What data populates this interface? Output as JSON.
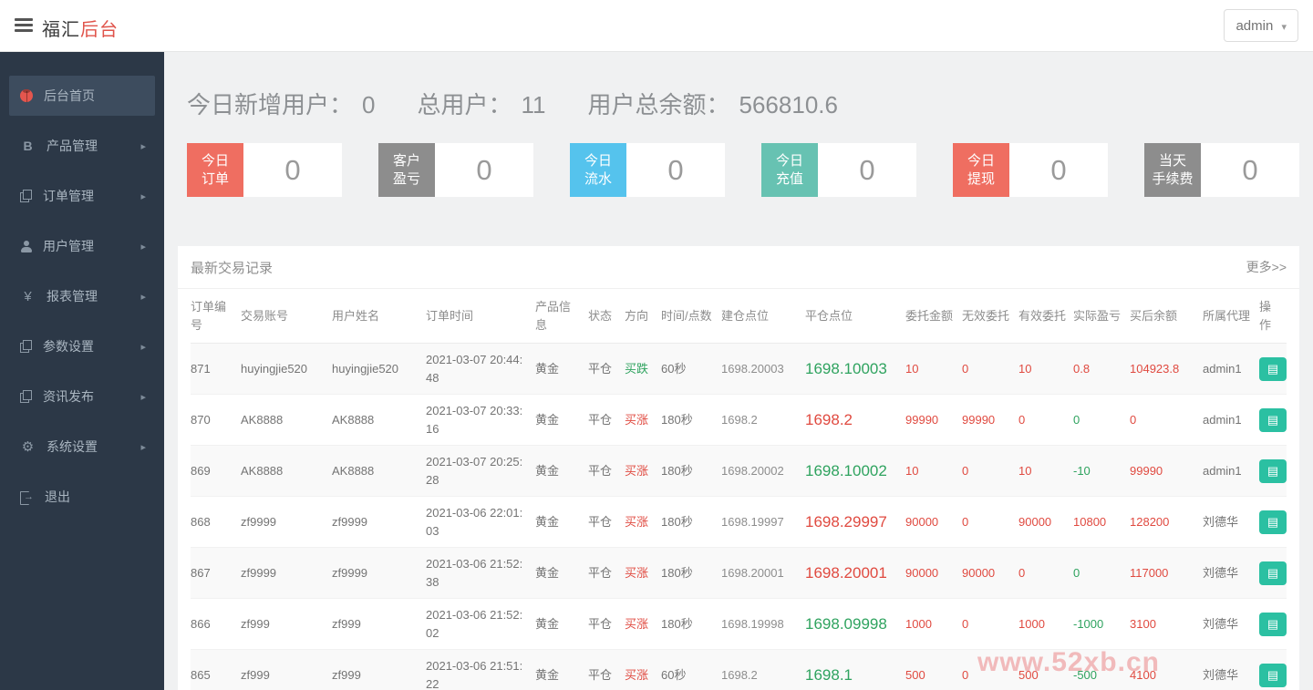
{
  "header": {
    "brand_primary": "福汇",
    "brand_secondary": "后台",
    "user": "admin"
  },
  "sidebar": {
    "items": [
      {
        "label": "后台首页",
        "icon": "ladybug-icon",
        "active": true,
        "has_arrow": false
      },
      {
        "label": "产品管理",
        "icon": "bitcoin-icon",
        "active": false,
        "has_arrow": true
      },
      {
        "label": "订单管理",
        "icon": "orders-icon",
        "active": false,
        "has_arrow": true
      },
      {
        "label": "用户管理",
        "icon": "user-icon",
        "active": false,
        "has_arrow": true
      },
      {
        "label": "报表管理",
        "icon": "yen-icon",
        "active": false,
        "has_arrow": true
      },
      {
        "label": "参数设置",
        "icon": "params-icon",
        "active": false,
        "has_arrow": true
      },
      {
        "label": "资讯发布",
        "icon": "news-icon",
        "active": false,
        "has_arrow": true
      },
      {
        "label": "系统设置",
        "icon": "gear-icon",
        "active": false,
        "has_arrow": true
      },
      {
        "label": "退出",
        "icon": "logout-icon",
        "active": false,
        "has_arrow": false
      }
    ]
  },
  "summary": {
    "new_users_label": "今日新增用户：",
    "new_users_value": "0",
    "total_users_label": "总用户：",
    "total_users_value": "11",
    "total_balance_label": "用户总余额：",
    "total_balance_value": "566810.6"
  },
  "stat_cards": [
    {
      "label_lines": [
        "今日",
        "订单"
      ],
      "value": "0",
      "color": "#ef6e61"
    },
    {
      "label_lines": [
        "客户",
        "盈亏"
      ],
      "value": "0",
      "color": "#8d8d8d"
    },
    {
      "label_lines": [
        "今日",
        "流水"
      ],
      "value": "0",
      "color": "#55c3ed"
    },
    {
      "label_lines": [
        "今日",
        "充值"
      ],
      "value": "0",
      "color": "#67c2b2"
    },
    {
      "label_lines": [
        "今日",
        "提现"
      ],
      "value": "0",
      "color": "#ef6e61"
    },
    {
      "label_lines": [
        "当天",
        "手续费"
      ],
      "value": "0",
      "color": "#8d8d8d"
    }
  ],
  "panel": {
    "title": "最新交易记录",
    "more": "更多>>"
  },
  "table": {
    "columns": [
      "订单编号",
      "交易账号",
      "用户姓名",
      "订单时间",
      "产品信息",
      "状态",
      "方向",
      "时间/点数",
      "建仓点位",
      "平仓点位",
      "委托金额",
      "无效委托",
      "有效委托",
      "实际盈亏",
      "买后余额",
      "所属代理",
      "操作"
    ],
    "rows": [
      {
        "id": "871",
        "account": "huyingjie520",
        "name": "huyingjie520",
        "time": "2021-03-07 20:44:48",
        "product": "黄金",
        "status": "平仓",
        "direction": "买跌",
        "direction_color": "green",
        "duration": "60秒",
        "open_point": "1698.20003",
        "close_point": "1698.10003",
        "close_color": "green",
        "amount": "10",
        "invalid": "0",
        "valid": "10",
        "profit": "0.8",
        "profit_color": "red",
        "balance": "104923.8",
        "agent": "admin1"
      },
      {
        "id": "870",
        "account": "AK8888",
        "name": "AK8888",
        "time": "2021-03-07 20:33:16",
        "product": "黄金",
        "status": "平仓",
        "direction": "买涨",
        "direction_color": "red",
        "duration": "180秒",
        "open_point": "1698.2",
        "close_point": "1698.2",
        "close_color": "red",
        "amount": "99990",
        "invalid": "99990",
        "valid": "0",
        "profit": "0",
        "profit_color": "green",
        "balance": "0",
        "agent": "admin1"
      },
      {
        "id": "869",
        "account": "AK8888",
        "name": "AK8888",
        "time": "2021-03-07 20:25:28",
        "product": "黄金",
        "status": "平仓",
        "direction": "买涨",
        "direction_color": "red",
        "duration": "180秒",
        "open_point": "1698.20002",
        "close_point": "1698.10002",
        "close_color": "green",
        "amount": "10",
        "invalid": "0",
        "valid": "10",
        "profit": "-10",
        "profit_color": "green",
        "balance": "99990",
        "agent": "admin1"
      },
      {
        "id": "868",
        "account": "zf9999",
        "name": "zf9999",
        "time": "2021-03-06 22:01:03",
        "product": "黄金",
        "status": "平仓",
        "direction": "买涨",
        "direction_color": "red",
        "duration": "180秒",
        "open_point": "1698.19997",
        "close_point": "1698.29997",
        "close_color": "red",
        "amount": "90000",
        "invalid": "0",
        "valid": "90000",
        "profit": "10800",
        "profit_color": "red",
        "balance": "128200",
        "agent": "刘德华"
      },
      {
        "id": "867",
        "account": "zf9999",
        "name": "zf9999",
        "time": "2021-03-06 21:52:38",
        "product": "黄金",
        "status": "平仓",
        "direction": "买涨",
        "direction_color": "red",
        "duration": "180秒",
        "open_point": "1698.20001",
        "close_point": "1698.20001",
        "close_color": "red",
        "amount": "90000",
        "invalid": "90000",
        "valid": "0",
        "profit": "0",
        "profit_color": "green",
        "balance": "117000",
        "agent": "刘德华"
      },
      {
        "id": "866",
        "account": "zf999",
        "name": "zf999",
        "time": "2021-03-06 21:52:02",
        "product": "黄金",
        "status": "平仓",
        "direction": "买涨",
        "direction_color": "red",
        "duration": "180秒",
        "open_point": "1698.19998",
        "close_point": "1698.09998",
        "close_color": "green",
        "amount": "1000",
        "invalid": "0",
        "valid": "1000",
        "profit": "-1000",
        "profit_color": "green",
        "balance": "3100",
        "agent": "刘德华"
      },
      {
        "id": "865",
        "account": "zf999",
        "name": "zf999",
        "time": "2021-03-06 21:51:22",
        "product": "黄金",
        "status": "平仓",
        "direction": "买涨",
        "direction_color": "red",
        "duration": "60秒",
        "open_point": "1698.2",
        "close_point": "1698.1",
        "close_color": "green",
        "amount": "500",
        "invalid": "0",
        "valid": "500",
        "profit": "-500",
        "profit_color": "green",
        "balance": "4100",
        "agent": "刘德华"
      }
    ]
  },
  "watermark": "www.52xb.cn",
  "colors": {
    "accent_red": "#ef6e61",
    "accent_blue": "#55c3ed",
    "accent_teal": "#67c2b2",
    "accent_gray": "#8d8d8d",
    "sidebar_bg": "#2c3847",
    "value_red": "#e04a40",
    "value_green": "#2fa35f",
    "op_button": "#2bc0a2"
  }
}
